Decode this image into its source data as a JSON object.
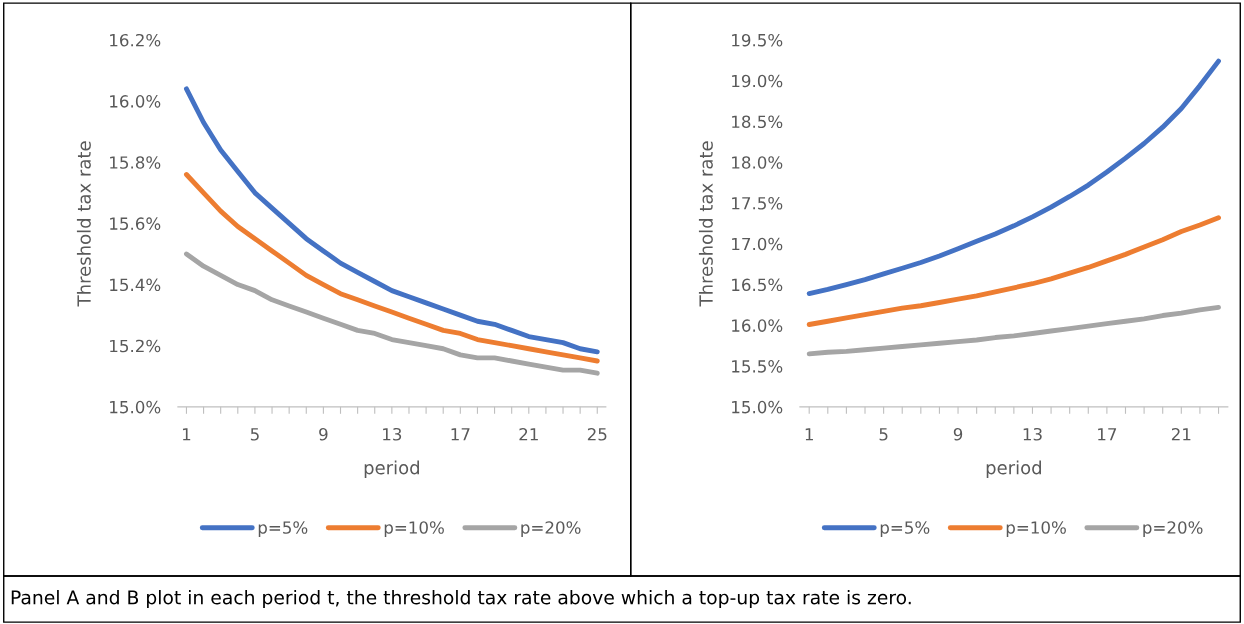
{
  "chart_data": [
    {
      "type": "line",
      "ylabel": "Threshold tax rate",
      "xlabel": "period",
      "legend": "bottom",
      "grid": false,
      "marker": "none",
      "line_style": "solid",
      "categories": [
        "1",
        null,
        null,
        null,
        "5",
        null,
        null,
        null,
        "9",
        null,
        null,
        null,
        "13",
        null,
        null,
        null,
        "17",
        null,
        null,
        null,
        "21",
        null,
        null,
        null,
        "25"
      ],
      "ylim": [
        15.0,
        16.2
      ],
      "yticks": [
        {
          "value": 15.0,
          "label": "15.0%"
        },
        {
          "value": 15.2,
          "label": "15.2%"
        },
        {
          "value": 15.4,
          "label": "15.4%"
        },
        {
          "value": 15.6,
          "label": "15.6%"
        },
        {
          "value": 15.8,
          "label": "15.8%"
        },
        {
          "value": 16.0,
          "label": "16.0%"
        },
        {
          "value": 16.2,
          "label": "16.2%"
        }
      ],
      "series": [
        {
          "name": "p=5%",
          "color": "#4472c4",
          "values": [
            16.04,
            15.93,
            15.84,
            15.77,
            15.7,
            15.65,
            15.6,
            15.55,
            15.51,
            15.47,
            15.44,
            15.41,
            15.38,
            15.36,
            15.34,
            15.32,
            15.3,
            15.28,
            15.27,
            15.25,
            15.23,
            15.22,
            15.21,
            15.19,
            15.18
          ]
        },
        {
          "name": "p=10%",
          "color": "#ed7d31",
          "values": [
            15.76,
            15.7,
            15.64,
            15.59,
            15.55,
            15.51,
            15.47,
            15.43,
            15.4,
            15.37,
            15.35,
            15.33,
            15.31,
            15.29,
            15.27,
            15.25,
            15.24,
            15.22,
            15.21,
            15.2,
            15.19,
            15.18,
            15.17,
            15.16,
            15.15
          ]
        },
        {
          "name": "p=20%",
          "color": "#a5a5a5",
          "values": [
            15.5,
            15.46,
            15.43,
            15.4,
            15.38,
            15.35,
            15.33,
            15.31,
            15.29,
            15.27,
            15.25,
            15.24,
            15.22,
            15.21,
            15.2,
            15.19,
            15.17,
            15.16,
            15.16,
            15.15,
            15.14,
            15.13,
            15.12,
            15.12,
            15.11
          ]
        }
      ],
      "annotations": [
        "Panel A and B plot in each period t, the threshold tax rate above which a top-up tax rate is zero."
      ]
    },
    {
      "type": "line",
      "ylabel": "Threshold tax rate",
      "xlabel": "period",
      "legend": "bottom",
      "grid": false,
      "marker": "none",
      "line_style": "solid",
      "categories": [
        "1",
        null,
        null,
        null,
        "5",
        null,
        null,
        null,
        "9",
        null,
        null,
        null,
        "13",
        null,
        null,
        null,
        "17",
        null,
        null,
        null,
        "21",
        null,
        null
      ],
      "ylim": [
        15.0,
        19.5
      ],
      "yticks": [
        {
          "value": 15.0,
          "label": "15.0%"
        },
        {
          "value": 15.5,
          "label": "15.5%"
        },
        {
          "value": 16.0,
          "label": "16.0%"
        },
        {
          "value": 16.5,
          "label": "16.5%"
        },
        {
          "value": 17.0,
          "label": "17.0%"
        },
        {
          "value": 17.5,
          "label": "17.5%"
        },
        {
          "value": 18.0,
          "label": "18.0%"
        },
        {
          "value": 18.5,
          "label": "18.5%"
        },
        {
          "value": 19.0,
          "label": "19.0%"
        },
        {
          "value": 19.5,
          "label": "19.5%"
        }
      ],
      "series": [
        {
          "name": "p=5%",
          "color": "#4472c4",
          "values": [
            16.39,
            16.44,
            16.5,
            16.56,
            16.63,
            16.7,
            16.77,
            16.85,
            16.94,
            17.03,
            17.12,
            17.22,
            17.33,
            17.45,
            17.58,
            17.72,
            17.88,
            18.05,
            18.23,
            18.43,
            18.66,
            18.94,
            19.24
          ]
        },
        {
          "name": "p=10%",
          "color": "#ed7d31",
          "values": [
            16.01,
            16.05,
            16.09,
            16.13,
            16.17,
            16.21,
            16.24,
            16.28,
            16.32,
            16.36,
            16.41,
            16.46,
            16.51,
            16.57,
            16.64,
            16.71,
            16.79,
            16.87,
            16.96,
            17.05,
            17.15,
            17.23,
            17.32
          ]
        },
        {
          "name": "p=20%",
          "color": "#a5a5a5",
          "values": [
            15.65,
            15.67,
            15.68,
            15.7,
            15.72,
            15.74,
            15.76,
            15.78,
            15.8,
            15.82,
            15.85,
            15.87,
            15.9,
            15.93,
            15.96,
            15.99,
            16.02,
            16.05,
            16.08,
            16.12,
            16.15,
            16.19,
            16.22
          ]
        }
      ]
    }
  ]
}
